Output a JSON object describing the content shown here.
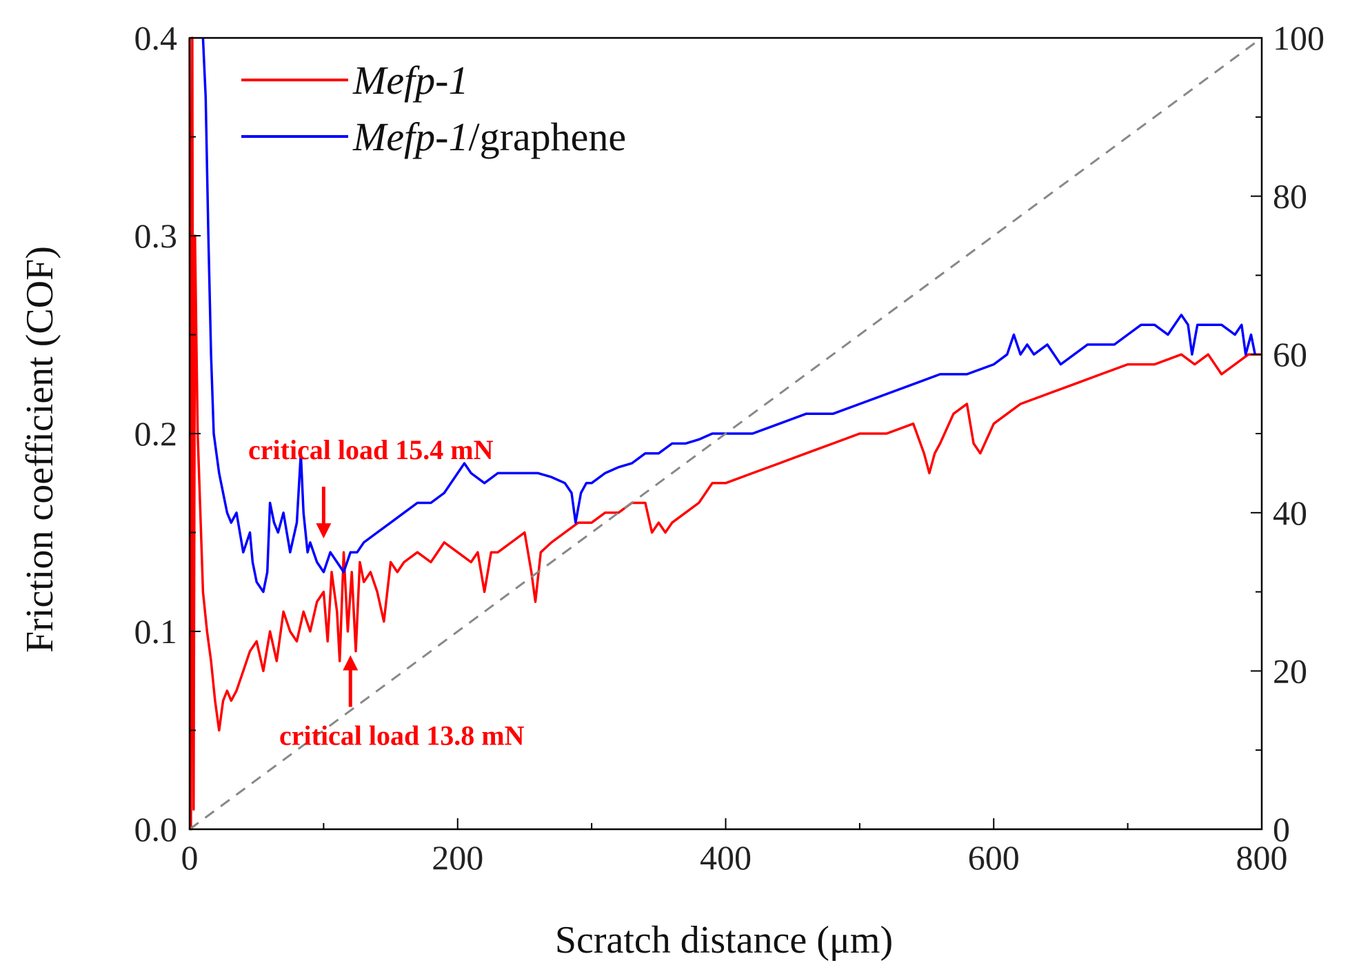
{
  "chart_data": {
    "type": "line",
    "title": "",
    "xlabel": "Scratch distance (μm)",
    "ylabel": "Friction coefficient (COF)",
    "xlim": [
      0,
      800
    ],
    "ylim": [
      0,
      0.4
    ],
    "y2lim": [
      0,
      100
    ],
    "x_ticks": [
      "0",
      "200",
      "400",
      "600",
      "800"
    ],
    "y_ticks": [
      "0.0",
      "0.1",
      "0.2",
      "0.3",
      "0.4"
    ],
    "y2_ticks": [
      "0",
      "20",
      "40",
      "60",
      "80",
      "100"
    ],
    "colors": {
      "mefp1": "#ff0000",
      "graphene": "#0000ff",
      "load_line": "#888888",
      "annotation": "#ff0000"
    },
    "legend": {
      "position": "top-left",
      "entries": [
        {
          "italic": "Mefp-1",
          "rest": ""
        },
        {
          "italic": "Mefp-1",
          "rest": "/graphene"
        }
      ]
    },
    "series": [
      {
        "name": "Mefp-1",
        "color": "#ff0000",
        "x": [
          0,
          1,
          2,
          3,
          4,
          5,
          6,
          8,
          10,
          13,
          16,
          19,
          22,
          25,
          28,
          31,
          35,
          40,
          45,
          50,
          55,
          60,
          65,
          70,
          75,
          80,
          85,
          90,
          95,
          100,
          103,
          106,
          110,
          112,
          115,
          118,
          121,
          124,
          127,
          130,
          135,
          140,
          145,
          150,
          155,
          160,
          170,
          180,
          190,
          200,
          210,
          215,
          220,
          225,
          230,
          240,
          250,
          255,
          258,
          262,
          270,
          280,
          290,
          300,
          310,
          320,
          330,
          340,
          345,
          350,
          355,
          360,
          370,
          380,
          390,
          400,
          420,
          440,
          460,
          480,
          500,
          520,
          540,
          548,
          552,
          556,
          560,
          570,
          580,
          585,
          590,
          600,
          610,
          620,
          640,
          660,
          680,
          700,
          720,
          740,
          750,
          760,
          770,
          780,
          790,
          795,
          800
        ],
        "y": [
          0.4,
          0.0,
          0.4,
          0.01,
          0.3,
          0.25,
          0.2,
          0.16,
          0.12,
          0.1,
          0.085,
          0.065,
          0.05,
          0.065,
          0.07,
          0.065,
          0.07,
          0.08,
          0.09,
          0.095,
          0.08,
          0.1,
          0.085,
          0.11,
          0.1,
          0.095,
          0.11,
          0.1,
          0.115,
          0.12,
          0.095,
          0.13,
          0.11,
          0.085,
          0.14,
          0.1,
          0.13,
          0.09,
          0.135,
          0.125,
          0.13,
          0.12,
          0.105,
          0.135,
          0.13,
          0.135,
          0.14,
          0.135,
          0.145,
          0.14,
          0.135,
          0.14,
          0.12,
          0.14,
          0.14,
          0.145,
          0.15,
          0.13,
          0.115,
          0.14,
          0.145,
          0.15,
          0.155,
          0.155,
          0.16,
          0.16,
          0.165,
          0.165,
          0.15,
          0.155,
          0.15,
          0.155,
          0.16,
          0.165,
          0.175,
          0.175,
          0.18,
          0.185,
          0.19,
          0.195,
          0.2,
          0.2,
          0.205,
          0.19,
          0.18,
          0.19,
          0.195,
          0.21,
          0.215,
          0.195,
          0.19,
          0.205,
          0.21,
          0.215,
          0.22,
          0.225,
          0.23,
          0.235,
          0.235,
          0.24,
          0.235,
          0.24,
          0.23,
          0.235,
          0.24,
          0.24,
          0.24
        ]
      },
      {
        "name": "Mefp-1/graphene",
        "color": "#0000ff",
        "x": [
          10,
          12,
          14,
          16,
          18,
          20,
          22,
          25,
          28,
          31,
          35,
          40,
          45,
          47,
          50,
          55,
          58,
          60,
          63,
          66,
          70,
          75,
          80,
          83,
          85,
          88,
          90,
          95,
          100,
          105,
          110,
          115,
          120,
          125,
          130,
          140,
          150,
          160,
          170,
          180,
          190,
          200,
          205,
          210,
          220,
          230,
          240,
          250,
          260,
          270,
          280,
          285,
          288,
          292,
          296,
          300,
          310,
          320,
          330,
          340,
          350,
          360,
          370,
          380,
          390,
          400,
          420,
          440,
          460,
          480,
          500,
          520,
          540,
          560,
          580,
          600,
          610,
          615,
          620,
          625,
          630,
          640,
          650,
          660,
          670,
          680,
          690,
          700,
          710,
          720,
          730,
          740,
          745,
          748,
          752,
          760,
          770,
          780,
          785,
          788,
          792,
          795
        ],
        "y": [
          0.4,
          0.37,
          0.3,
          0.24,
          0.2,
          0.19,
          0.18,
          0.17,
          0.16,
          0.155,
          0.16,
          0.14,
          0.15,
          0.135,
          0.125,
          0.12,
          0.13,
          0.165,
          0.155,
          0.15,
          0.16,
          0.14,
          0.155,
          0.19,
          0.16,
          0.14,
          0.145,
          0.135,
          0.13,
          0.14,
          0.135,
          0.13,
          0.14,
          0.14,
          0.145,
          0.15,
          0.155,
          0.16,
          0.165,
          0.165,
          0.17,
          0.18,
          0.185,
          0.18,
          0.175,
          0.18,
          0.18,
          0.18,
          0.18,
          0.178,
          0.175,
          0.17,
          0.155,
          0.17,
          0.175,
          0.175,
          0.18,
          0.183,
          0.185,
          0.19,
          0.19,
          0.195,
          0.195,
          0.197,
          0.2,
          0.2,
          0.2,
          0.205,
          0.21,
          0.21,
          0.215,
          0.22,
          0.225,
          0.23,
          0.23,
          0.235,
          0.24,
          0.25,
          0.24,
          0.245,
          0.24,
          0.245,
          0.235,
          0.24,
          0.245,
          0.245,
          0.245,
          0.25,
          0.255,
          0.255,
          0.25,
          0.26,
          0.255,
          0.24,
          0.255,
          0.255,
          0.255,
          0.25,
          0.255,
          0.24,
          0.25,
          0.24
        ]
      },
      {
        "name": "Normal load",
        "axis": "right",
        "style": "dashed",
        "color": "#888888",
        "x": [
          0,
          800
        ],
        "y": [
          0,
          100
        ]
      }
    ],
    "annotations": [
      {
        "text": "critical load 15.4 mN",
        "arrow": "down",
        "x": 100,
        "y_tip": 0.147
      },
      {
        "text": "critical load 13.8 mN",
        "arrow": "up",
        "x": 120,
        "y_tip": 0.088
      }
    ]
  }
}
